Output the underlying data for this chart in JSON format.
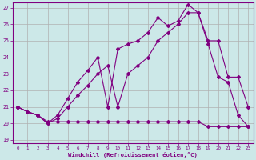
{
  "bg_color": "#cce8e8",
  "line_color": "#800080",
  "grid_color": "#b0b0b0",
  "xlabel": "Windchill (Refroidissement éolien,°C)",
  "xlabel_color": "#800080",
  "tick_color": "#800080",
  "xlim": [
    -0.5,
    23.5
  ],
  "ylim": [
    18.8,
    27.3
  ],
  "yticks": [
    19,
    20,
    21,
    22,
    23,
    24,
    25,
    26,
    27
  ],
  "xticks": [
    0,
    1,
    2,
    3,
    4,
    5,
    6,
    7,
    8,
    9,
    10,
    11,
    12,
    13,
    14,
    15,
    16,
    17,
    18,
    19,
    20,
    21,
    22,
    23
  ],
  "line1_x": [
    0,
    1,
    2,
    3,
    4,
    5,
    6,
    7,
    8,
    9,
    10,
    11,
    12,
    13,
    14,
    15,
    16,
    17,
    18,
    19,
    20,
    21,
    22,
    23
  ],
  "line1_y": [
    21.0,
    20.7,
    20.5,
    20.1,
    20.1,
    20.1,
    20.1,
    20.1,
    20.1,
    20.1,
    20.1,
    20.1,
    20.1,
    20.1,
    20.1,
    20.1,
    20.1,
    20.1,
    20.1,
    19.8,
    19.8,
    19.8,
    19.8,
    19.8
  ],
  "line2_x": [
    0,
    1,
    2,
    3,
    4,
    5,
    6,
    7,
    8,
    9,
    10,
    11,
    12,
    13,
    14,
    15,
    16,
    17,
    18,
    19,
    20,
    21,
    22,
    23
  ],
  "line2_y": [
    21.0,
    20.7,
    20.5,
    20.0,
    20.3,
    21.0,
    21.7,
    22.3,
    23.0,
    23.5,
    21.0,
    23.0,
    23.5,
    24.0,
    25.0,
    25.5,
    26.0,
    26.7,
    26.7,
    25.0,
    25.0,
    22.8,
    22.8,
    21.0
  ],
  "line3_x": [
    0,
    1,
    2,
    3,
    4,
    5,
    6,
    7,
    8,
    9,
    10,
    11,
    12,
    13,
    14,
    15,
    16,
    17,
    18,
    19,
    20,
    21,
    22,
    23
  ],
  "line3_y": [
    21.0,
    20.7,
    20.5,
    20.0,
    20.5,
    21.5,
    22.5,
    23.2,
    24.0,
    21.0,
    24.5,
    24.8,
    25.0,
    25.5,
    26.4,
    25.9,
    26.2,
    27.2,
    26.7,
    24.8,
    22.8,
    22.5,
    20.5,
    19.8
  ]
}
